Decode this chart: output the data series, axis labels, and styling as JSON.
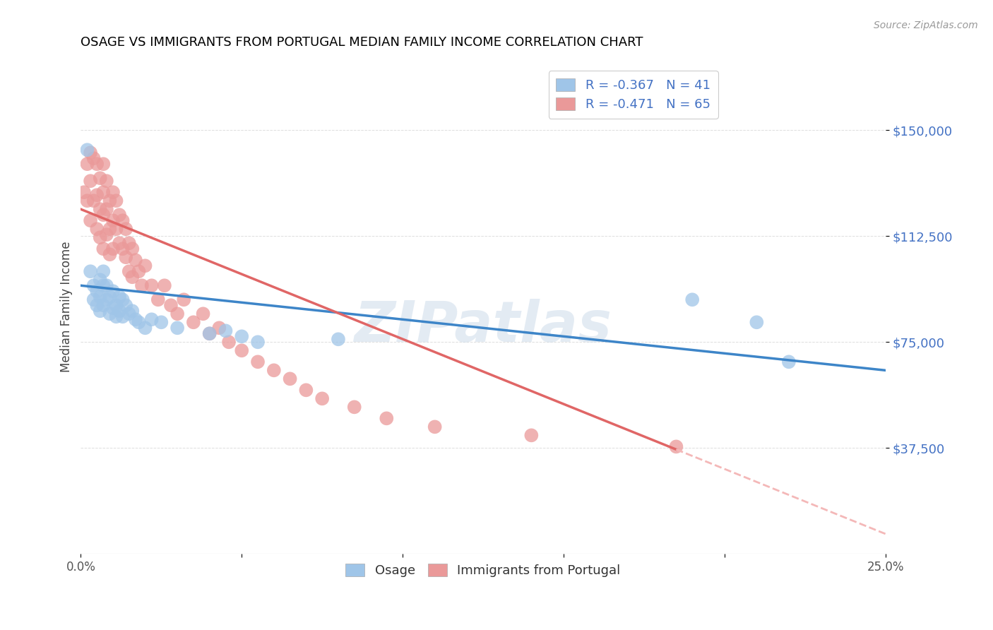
{
  "title": "OSAGE VS IMMIGRANTS FROM PORTUGAL MEDIAN FAMILY INCOME CORRELATION CHART",
  "source": "Source: ZipAtlas.com",
  "ylabel": "Median Family Income",
  "xlim": [
    0.0,
    0.25
  ],
  "ylim": [
    0,
    175000
  ],
  "yticks": [
    37500,
    75000,
    112500,
    150000
  ],
  "ytick_labels": [
    "$37,500",
    "$75,000",
    "$112,500",
    "$150,000"
  ],
  "xticks": [
    0.0,
    0.05,
    0.1,
    0.15,
    0.2,
    0.25
  ],
  "xtick_labels": [
    "0.0%",
    "",
    "",
    "",
    "",
    "25.0%"
  ],
  "legend_labels": [
    "Osage",
    "Immigrants from Portugal"
  ],
  "osage_R": -0.367,
  "osage_N": 41,
  "portugal_R": -0.471,
  "portugal_N": 65,
  "blue_color": "#9fc5e8",
  "pink_color": "#ea9999",
  "blue_line_color": "#3d85c8",
  "pink_line_color": "#e06666",
  "pink_dash_color": "#f4b8b8",
  "background_color": "#ffffff",
  "grid_color": "#dddddd",
  "watermark": "ZIPatlas",
  "title_color": "#000000",
  "axis_label_color": "#444444",
  "ytick_color": "#4472c4",
  "xtick_color": "#555555",
  "legend_text_color": "#4472c4",
  "osage_x": [
    0.002,
    0.003,
    0.004,
    0.004,
    0.005,
    0.005,
    0.006,
    0.006,
    0.006,
    0.007,
    0.007,
    0.007,
    0.008,
    0.008,
    0.009,
    0.009,
    0.01,
    0.01,
    0.011,
    0.011,
    0.012,
    0.012,
    0.013,
    0.013,
    0.014,
    0.015,
    0.016,
    0.017,
    0.018,
    0.02,
    0.022,
    0.025,
    0.03,
    0.04,
    0.045,
    0.05,
    0.055,
    0.08,
    0.19,
    0.21,
    0.22
  ],
  "osage_y": [
    143000,
    100000,
    95000,
    90000,
    93000,
    88000,
    97000,
    91000,
    86000,
    100000,
    95000,
    88000,
    95000,
    90000,
    91000,
    85000,
    93000,
    87000,
    88000,
    84000,
    91000,
    86000,
    90000,
    84000,
    88000,
    85000,
    86000,
    83000,
    82000,
    80000,
    83000,
    82000,
    80000,
    78000,
    79000,
    77000,
    75000,
    76000,
    90000,
    82000,
    68000
  ],
  "portugal_x": [
    0.001,
    0.002,
    0.002,
    0.003,
    0.003,
    0.003,
    0.004,
    0.004,
    0.005,
    0.005,
    0.005,
    0.006,
    0.006,
    0.006,
    0.007,
    0.007,
    0.007,
    0.007,
    0.008,
    0.008,
    0.008,
    0.009,
    0.009,
    0.009,
    0.01,
    0.01,
    0.01,
    0.011,
    0.011,
    0.012,
    0.012,
    0.013,
    0.013,
    0.014,
    0.014,
    0.015,
    0.015,
    0.016,
    0.016,
    0.017,
    0.018,
    0.019,
    0.02,
    0.022,
    0.024,
    0.026,
    0.028,
    0.03,
    0.032,
    0.035,
    0.038,
    0.04,
    0.043,
    0.046,
    0.05,
    0.055,
    0.06,
    0.065,
    0.07,
    0.075,
    0.085,
    0.095,
    0.11,
    0.14,
    0.185
  ],
  "portugal_y": [
    128000,
    138000,
    125000,
    142000,
    132000,
    118000,
    140000,
    125000,
    138000,
    127000,
    115000,
    133000,
    122000,
    112000,
    138000,
    128000,
    120000,
    108000,
    132000,
    122000,
    113000,
    125000,
    115000,
    106000,
    128000,
    118000,
    108000,
    125000,
    115000,
    120000,
    110000,
    118000,
    108000,
    115000,
    105000,
    110000,
    100000,
    108000,
    98000,
    104000,
    100000,
    95000,
    102000,
    95000,
    90000,
    95000,
    88000,
    85000,
    90000,
    82000,
    85000,
    78000,
    80000,
    75000,
    72000,
    68000,
    65000,
    62000,
    58000,
    55000,
    52000,
    48000,
    45000,
    42000,
    38000
  ]
}
